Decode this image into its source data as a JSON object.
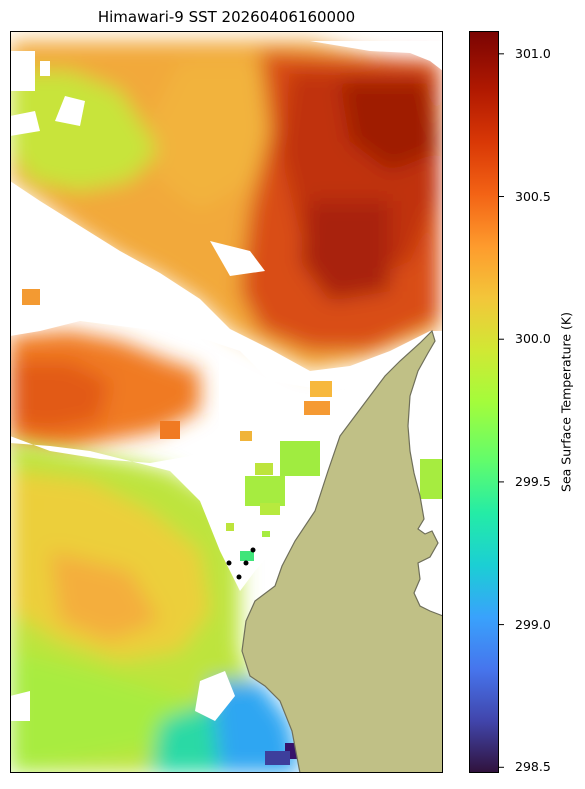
{
  "title": "Himawari-9 SST 20260406160000",
  "colorbar": {
    "label": "Sea Surface Temperature (K)",
    "min": 298.48,
    "max": 301.08,
    "colormap": "turbo",
    "ticks": [
      {
        "value": 298.5,
        "label": "298.5"
      },
      {
        "value": 299.0,
        "label": "299.0"
      },
      {
        "value": 299.5,
        "label": "299.5"
      },
      {
        "value": 300.0,
        "label": "300.0"
      },
      {
        "value": 300.5,
        "label": "300.5"
      },
      {
        "value": 301.0,
        "label": "301.0"
      }
    ]
  },
  "map": {
    "land_color": "#c0c086",
    "coast_color": "#6f6f5a",
    "background": "#ffffff",
    "station_markers": 4
  }
}
